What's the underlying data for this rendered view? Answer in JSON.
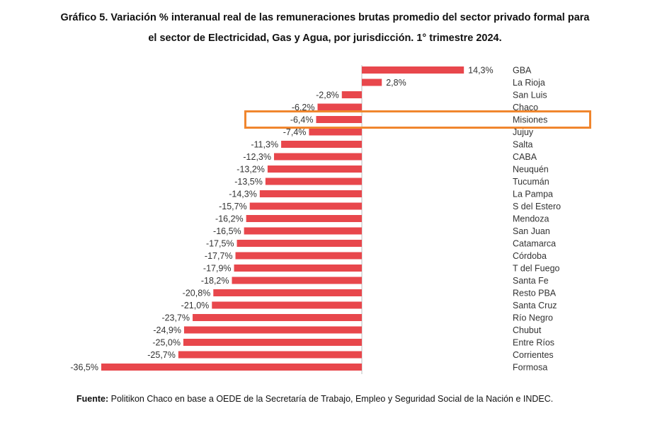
{
  "title_line1": "Gráfico 5. Variación % interanual real de las remuneraciones brutas promedio del sector privado formal para",
  "title_line2": "el sector de Electricidad, Gas y Agua, por jurisdicción. 1° trimestre 2024.",
  "source_label": "Fuente:",
  "source_text": "Politikon Chaco en base a OEDE de la Secretaría de Trabajo, Empleo y Seguridad Social de la Nación e INDEC.",
  "colors": {
    "bar": "#e8474c",
    "axis": "#bdbdbd",
    "highlight": "#f0862e"
  },
  "chart_data": {
    "type": "bar",
    "orientation": "horizontal",
    "title": "Variación % interanual real de las remuneraciones brutas promedio del sector privado formal para el sector de Electricidad, Gas y Agua, por jurisdicción. 1° trimestre 2024.",
    "xlabel": "",
    "ylabel": "",
    "xlim": [
      -36.5,
      14.3
    ],
    "highlighted_category": "Misiones",
    "categories": [
      "GBA",
      "La Rioja",
      "San Luis",
      "Chaco",
      "Misiones",
      "Jujuy",
      "Salta",
      "CABA",
      "Neuquén",
      "Tucumán",
      "La Pampa",
      "S del Estero",
      "Mendoza",
      "San Juan",
      "Catamarca",
      "Córdoba",
      "T del Fuego",
      "Santa Fe",
      "Resto PBA",
      "Santa Cruz",
      "Río Negro",
      "Chubut",
      "Entre Ríos",
      "Corrientes",
      "Formosa"
    ],
    "values": [
      14.3,
      2.8,
      -2.8,
      -6.2,
      -6.4,
      -7.4,
      -11.3,
      -12.3,
      -13.2,
      -13.5,
      -14.3,
      -15.7,
      -16.2,
      -16.5,
      -17.5,
      -17.7,
      -17.9,
      -18.2,
      -20.8,
      -21.0,
      -23.7,
      -24.9,
      -25.0,
      -25.7,
      -36.5
    ],
    "value_labels": [
      "14,3%",
      "2,8%",
      "-2,8%",
      "-6,2%",
      "-6,4%",
      "-7,4%",
      "-11,3%",
      "-12,3%",
      "-13,2%",
      "-13,5%",
      "-14,3%",
      "-15,7%",
      "-16,2%",
      "-16,5%",
      "-17,5%",
      "-17,7%",
      "-17,9%",
      "-18,2%",
      "-20,8%",
      "-21,0%",
      "-23,7%",
      "-24,9%",
      "-25,0%",
      "-25,7%",
      "-36,5%"
    ]
  }
}
